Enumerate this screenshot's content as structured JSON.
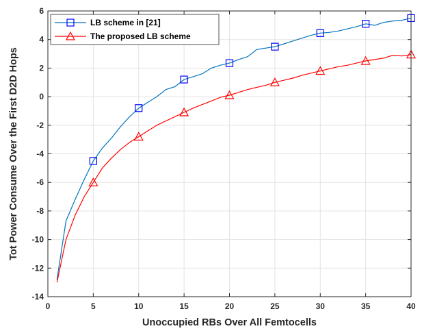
{
  "chart_data": {
    "type": "line",
    "xlabel": "Unoccupied RBs Over All Femtocells",
    "ylabel": "Tot Power Consume Over the First D2D Hops",
    "xlim": [
      0,
      40
    ],
    "ylim": [
      -14,
      6
    ],
    "xticks": [
      0,
      5,
      10,
      15,
      20,
      25,
      30,
      35,
      40
    ],
    "yticks": [
      -14,
      -12,
      -10,
      -8,
      -6,
      -4,
      -2,
      0,
      2,
      4,
      6
    ],
    "grid": true,
    "legend_position": "top-left",
    "series": [
      {
        "name": "LB scheme in [21]",
        "color": "#0072BD",
        "marker": "square",
        "marker_color": "#0000FF",
        "marker_x": [
          5,
          10,
          15,
          20,
          25,
          30,
          35,
          40
        ],
        "x": [
          1,
          2,
          3,
          4,
          5,
          6,
          7,
          8,
          9,
          10,
          11,
          12,
          13,
          14,
          15,
          16,
          17,
          18,
          19,
          20,
          21,
          22,
          23,
          24,
          25,
          26,
          27,
          28,
          29,
          30,
          31,
          32,
          33,
          34,
          35,
          36,
          37,
          38,
          39,
          40
        ],
        "values": [
          -12.8,
          -8.7,
          -7.2,
          -5.8,
          -4.5,
          -3.6,
          -2.9,
          -2.1,
          -1.4,
          -0.8,
          -0.4,
          0.0,
          0.5,
          0.7,
          1.2,
          1.4,
          1.6,
          2.0,
          2.2,
          2.35,
          2.6,
          2.8,
          3.3,
          3.4,
          3.5,
          3.7,
          3.9,
          4.1,
          4.3,
          4.45,
          4.5,
          4.6,
          4.75,
          4.9,
          5.1,
          5.0,
          5.2,
          5.3,
          5.35,
          5.5
        ]
      },
      {
        "name": "The proposed LB scheme",
        "color": "#FF0000",
        "marker": "triangle",
        "marker_color": "#FF0000",
        "marker_x": [
          5,
          10,
          15,
          20,
          25,
          30,
          35,
          40
        ],
        "x": [
          1,
          2,
          3,
          4,
          5,
          6,
          7,
          8,
          9,
          10,
          11,
          12,
          13,
          14,
          15,
          16,
          17,
          18,
          19,
          20,
          21,
          22,
          23,
          24,
          25,
          26,
          27,
          28,
          29,
          30,
          31,
          32,
          33,
          34,
          35,
          36,
          37,
          38,
          39,
          40
        ],
        "values": [
          -13.0,
          -10.0,
          -8.3,
          -7.0,
          -6.0,
          -5.0,
          -4.3,
          -3.7,
          -3.2,
          -2.8,
          -2.4,
          -2.0,
          -1.7,
          -1.4,
          -1.1,
          -0.8,
          -0.55,
          -0.3,
          -0.05,
          0.1,
          0.3,
          0.5,
          0.65,
          0.8,
          1.0,
          1.15,
          1.3,
          1.5,
          1.65,
          1.8,
          1.95,
          2.1,
          2.2,
          2.35,
          2.5,
          2.6,
          2.7,
          2.9,
          2.85,
          2.95
        ]
      }
    ]
  }
}
